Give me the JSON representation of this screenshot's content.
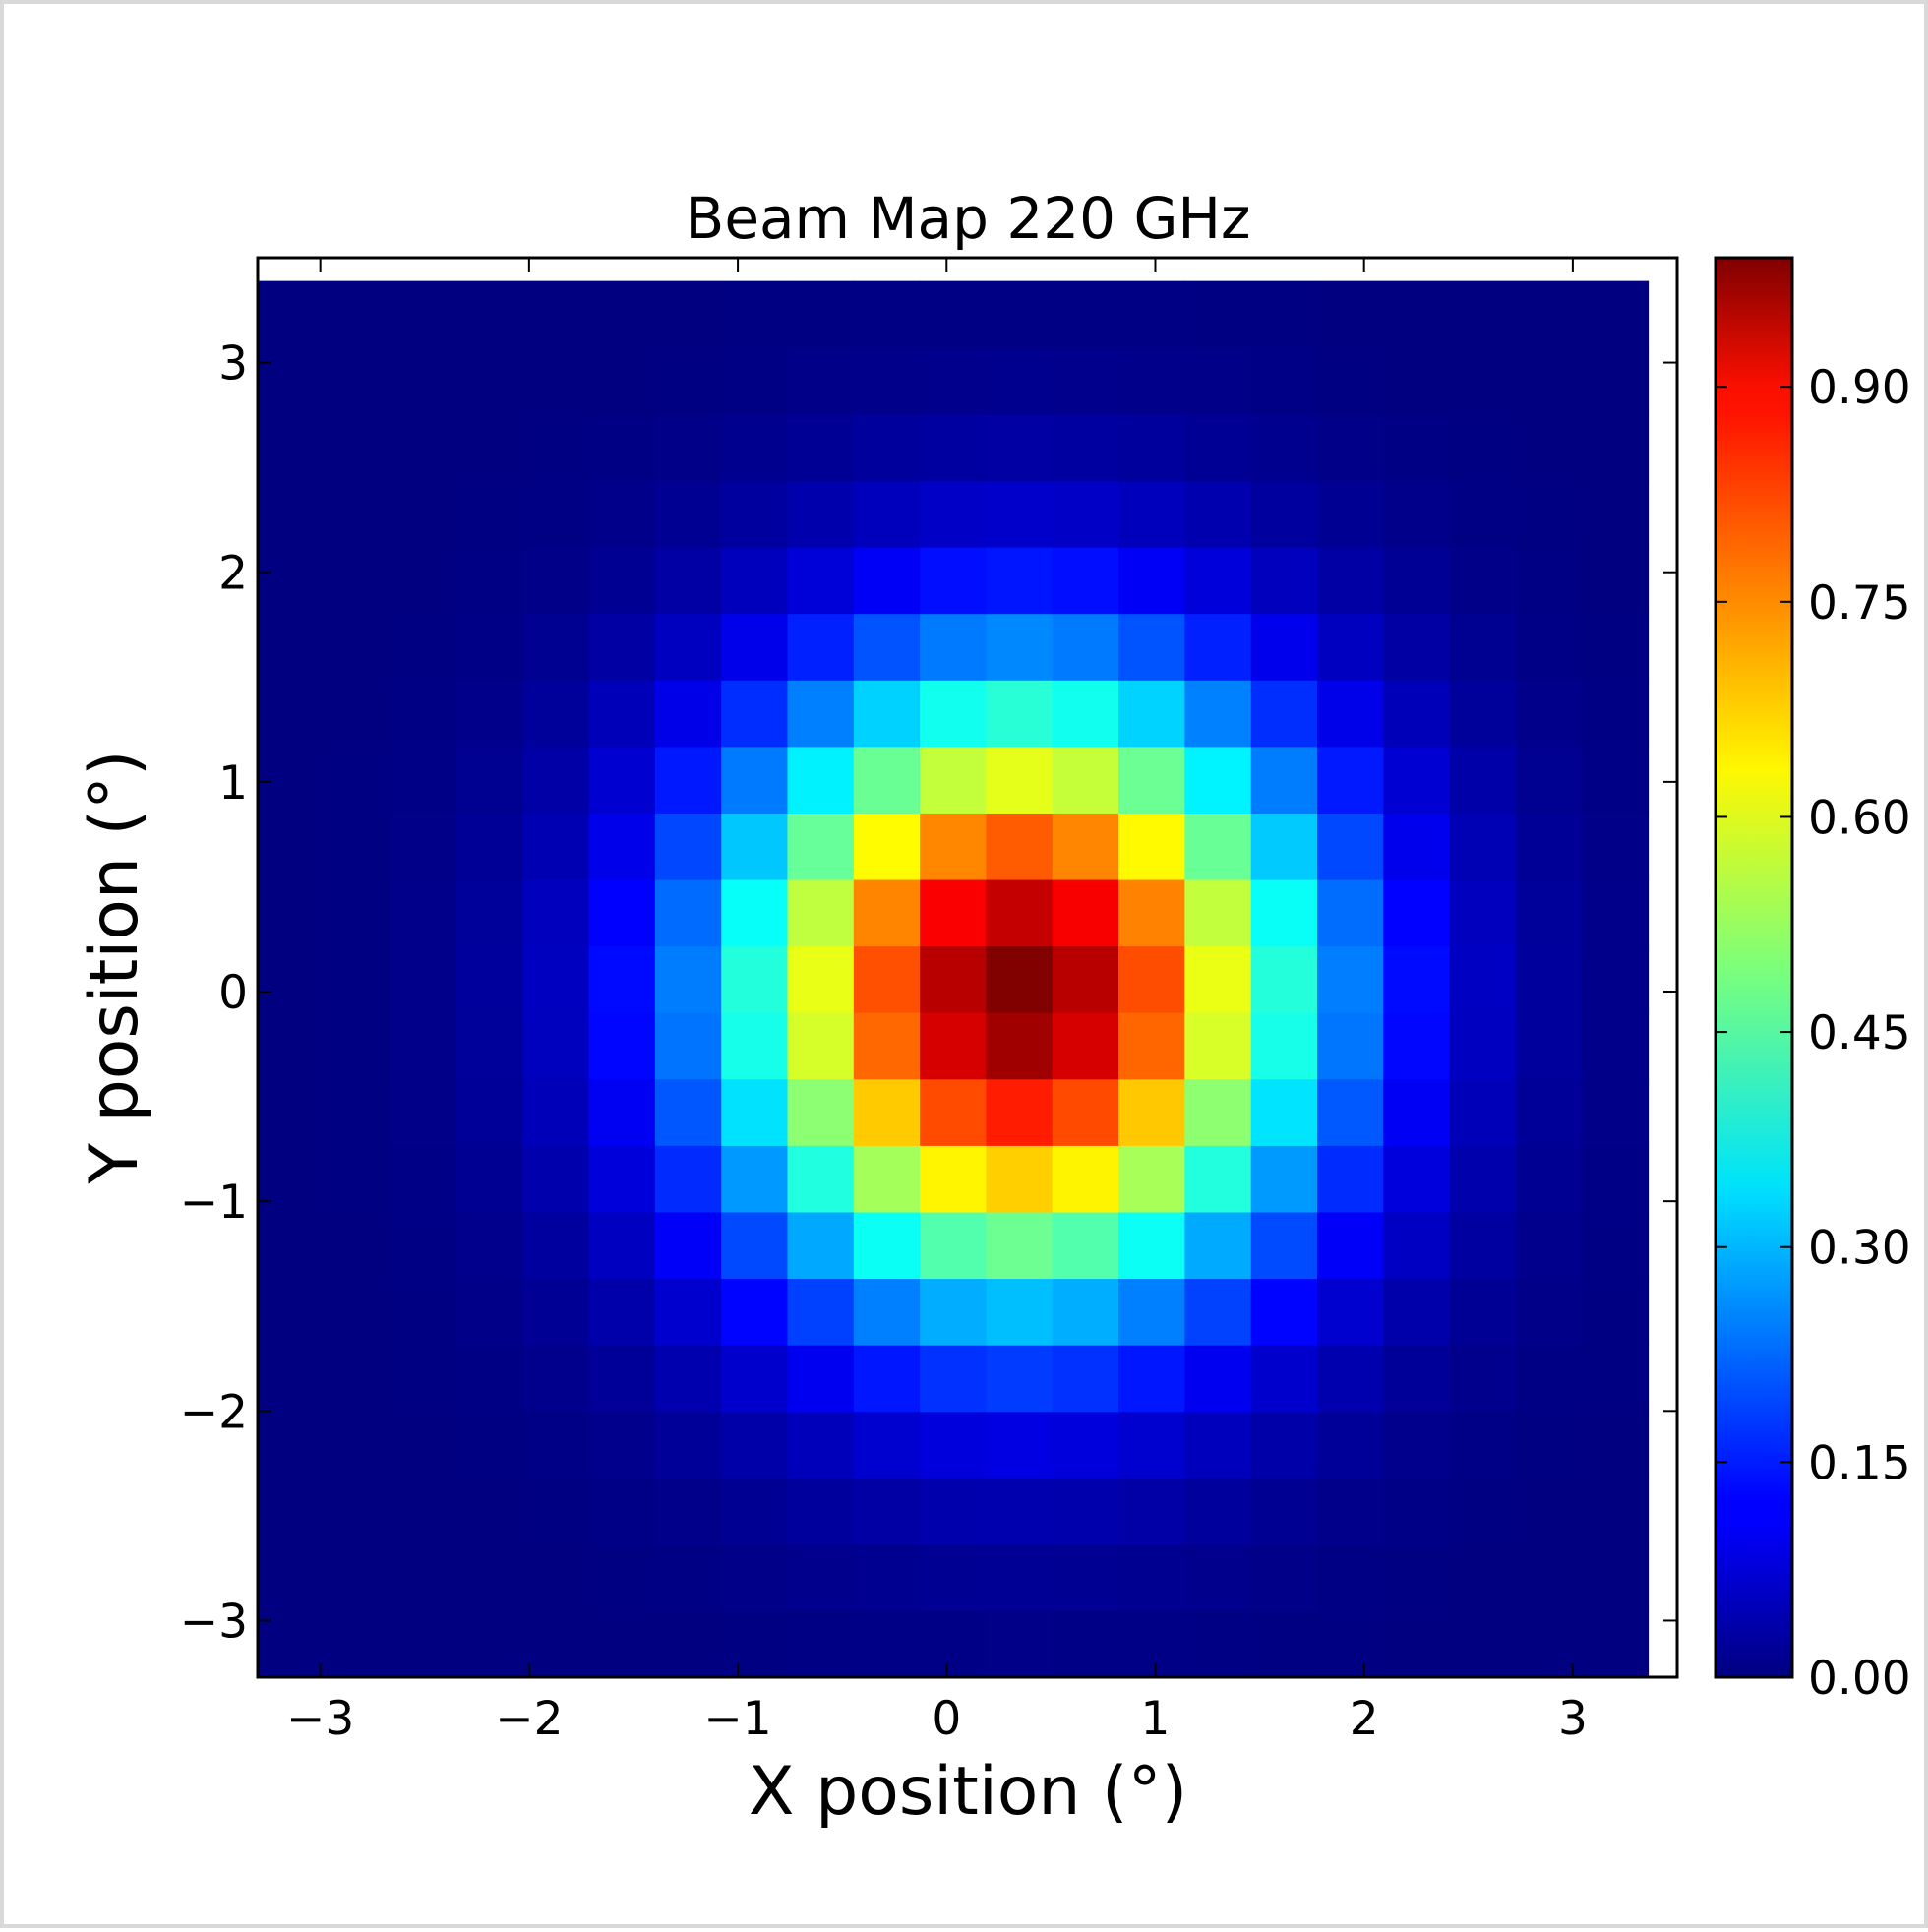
{
  "chart_data": {
    "type": "heatmap",
    "title": "Beam Map 220 GHz",
    "xlabel": "X position (°)",
    "ylabel": "Y position (°)",
    "colormap": "jet",
    "xlim": [
      -3.3,
      3.5
    ],
    "ylim": [
      -3.27,
      3.5
    ],
    "clim": [
      0,
      0.99
    ],
    "xticks": [
      -3,
      -2,
      -1,
      0,
      1,
      2,
      3
    ],
    "xtick_labels": [
      "−3",
      "−2",
      "−1",
      "0",
      "1",
      "2",
      "3"
    ],
    "yticks": [
      -3,
      -2,
      -1,
      0,
      1,
      2,
      3
    ],
    "ytick_labels": [
      "−3",
      "−2",
      "−1",
      "0",
      "1",
      "2",
      "3"
    ],
    "colorbar_ticks": [
      0.0,
      0.15,
      0.3,
      0.45,
      0.6,
      0.75,
      0.9
    ],
    "colorbar_tick_labels": [
      "0.00",
      "0.15",
      "0.30",
      "0.45",
      "0.60",
      "0.75",
      "0.90"
    ],
    "grid": {
      "nx": 21,
      "ny": 21,
      "x_start": -3.3,
      "y_start": -3.27,
      "x_step": 0.3172,
      "y_step": 0.3171,
      "beam_center": [
        0.35,
        0.0
      ],
      "beam_sigma": [
        0.95,
        1.0
      ],
      "peak": 0.99
    }
  }
}
